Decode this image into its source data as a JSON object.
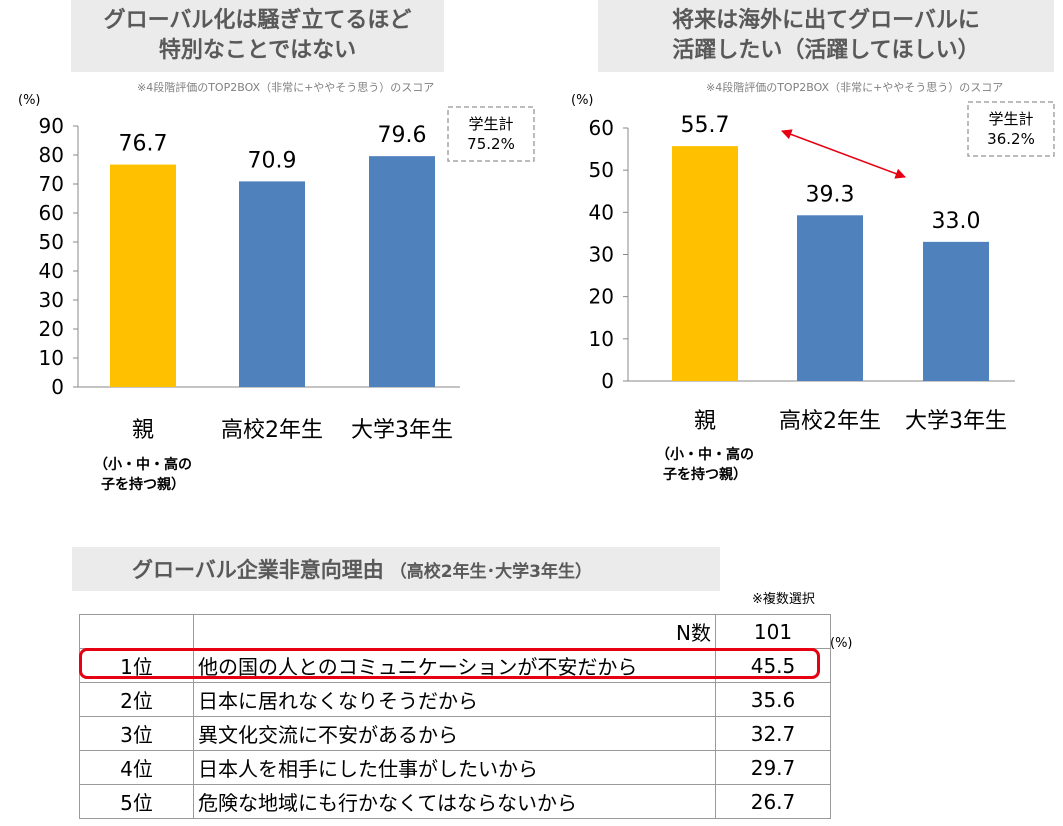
{
  "chart_data": [
    {
      "type": "bar",
      "title": [
        "グローバル化は騒ぎ立てるほど",
        "特別なことではない"
      ],
      "note": "※4段階評価のTOP2BOX（非常に+ややそう思う）のスコア",
      "unit_label": "(%)",
      "categories": [
        "親",
        "高校2年生",
        "大学3年生"
      ],
      "category_sublabel": [
        "（小・中・高の",
        "子を持つ親）"
      ],
      "values": [
        76.7,
        70.9,
        79.6
      ],
      "value_labels": [
        "76.7",
        "70.9",
        "79.6"
      ],
      "ylim": [
        0,
        90
      ],
      "yticks": [
        "0",
        "10",
        "20",
        "30",
        "40",
        "50",
        "60",
        "70",
        "80",
        "90"
      ],
      "colors": [
        "#ffc000",
        "#4f81bd",
        "#4f81bd"
      ],
      "callout": [
        "学生計",
        "75.2%"
      ]
    },
    {
      "type": "bar",
      "title": [
        "将来は海外に出てグローバルに",
        "活躍したい（活躍してほしい）"
      ],
      "note": "※4段階評価のTOP2BOX（非常に+ややそう思う）のスコア",
      "unit_label": "(%)",
      "categories": [
        "親",
        "高校2年生",
        "大学3年生"
      ],
      "category_sublabel": [
        "（小・中・高の",
        "子を持つ親）"
      ],
      "values": [
        55.7,
        39.3,
        33.0
      ],
      "value_labels": [
        "55.7",
        "39.3",
        "33.0"
      ],
      "ylim": [
        0,
        60
      ],
      "yticks": [
        "0",
        "10",
        "20",
        "30",
        "40",
        "50",
        "60"
      ],
      "colors": [
        "#ffc000",
        "#4f81bd",
        "#4f81bd"
      ],
      "callout": [
        "学生計",
        "36.2%"
      ]
    },
    {
      "type": "table",
      "title": "グローバル企業非意向理由",
      "subtitle": "（高校2年生･大学3年生）",
      "note": "※複数選択",
      "unit_label": "(%)",
      "header": {
        "rank": "",
        "label": "N数",
        "value": "101"
      },
      "rows": [
        {
          "rank": "1位",
          "reason": "他の国の人とのコミュニケーションが不安だから",
          "value": "45.5"
        },
        {
          "rank": "2位",
          "reason": "日本に居れなくなりそうだから",
          "value": "35.6"
        },
        {
          "rank": "3位",
          "reason": "異文化交流に不安があるから",
          "value": "32.7"
        },
        {
          "rank": "4位",
          "reason": "日本人を相手にした仕事がしたいから",
          "value": "29.7"
        },
        {
          "rank": "5位",
          "reason": "危険な地域にも行かなくてはならないから",
          "value": "26.7"
        }
      ]
    }
  ]
}
